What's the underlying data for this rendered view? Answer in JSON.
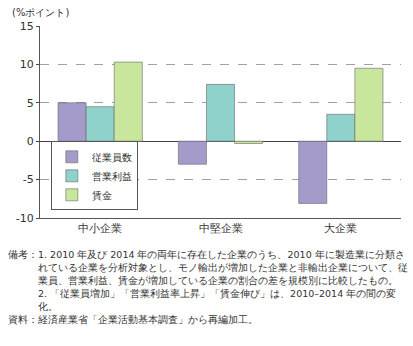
{
  "chart_data": {
    "type": "bar",
    "ylabel": "(%ポイント)",
    "categories": [
      "中小企業",
      "中堅企業",
      "大企業"
    ],
    "series": [
      {
        "name": "従業員数",
        "color": "#a49bcb",
        "values": [
          5.0,
          -3.0,
          -8.1
        ]
      },
      {
        "name": "営業利益",
        "color": "#8fd1cb",
        "values": [
          4.5,
          7.4,
          3.5
        ]
      },
      {
        "name": "賃金",
        "color": "#c8e69c",
        "values": [
          10.3,
          -0.3,
          9.5
        ]
      }
    ],
    "ylim": [
      -10,
      15
    ],
    "yticks": [
      -10,
      -5,
      0,
      5,
      10,
      15
    ],
    "grid": true,
    "legend": "lower left",
    "notes": [
      {
        "head": "備考：",
        "items": [
          "1. 2010 年及び 2014 年の両年に存在した企業のうち、2010 年に製造業に分類されている企業を分析対象とし、モノ輸出が増加した企業と非輸出企業について、従業員、営業利益、賃金が増加している企業の割合の差を規模別に比較したもの。",
          "2. 「従業員増加」「営業利益率上昇」「賃金伸び」は、2010–2014 年の間の変化。"
        ]
      },
      {
        "head": "資料：",
        "items": [
          "経済産業省「企業活動基本調査」から再編加工。"
        ]
      }
    ]
  }
}
